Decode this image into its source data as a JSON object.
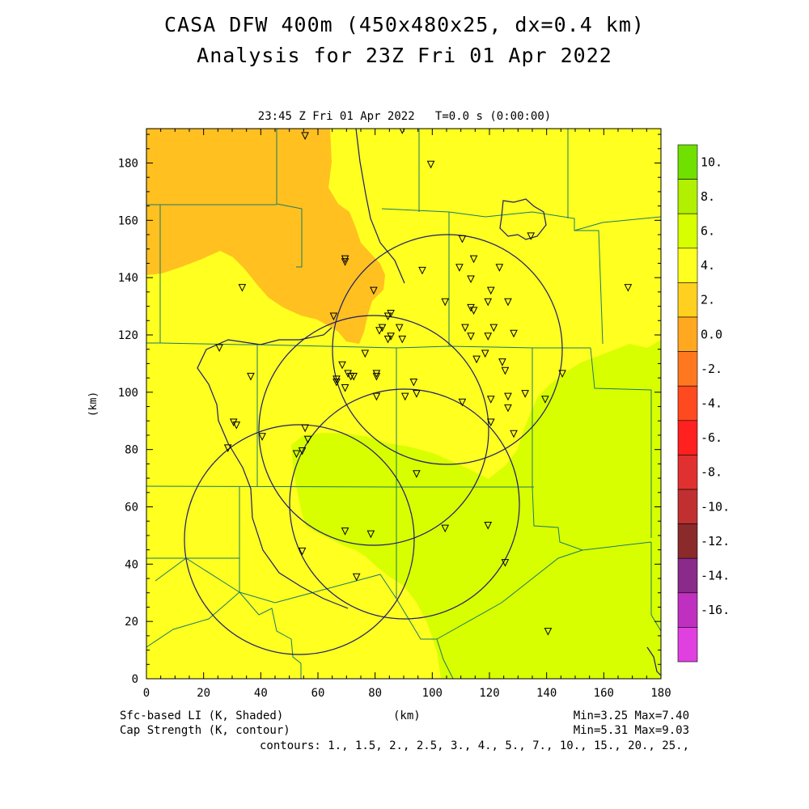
{
  "header": {
    "title_line1": "CASA DFW 400m (450x480x25, dx=0.4 km)",
    "title_line2": "Analysis for 23Z Fri 01 Apr 2022",
    "subtitle": "23:45 Z Fri 01 Apr 2022   T=0.0 s (0:00:00)"
  },
  "axes": {
    "x_label": "(km)",
    "y_label": "(km)",
    "x_ticks": [
      "0",
      "20",
      "40",
      "60",
      "80",
      "100",
      "120",
      "140",
      "160",
      "180"
    ],
    "y_ticks": [
      "0",
      "20",
      "40",
      "60",
      "80",
      "100",
      "120",
      "140",
      "160",
      "180"
    ],
    "x_range": [
      0,
      180
    ],
    "y_range": [
      0,
      192
    ]
  },
  "legend": {
    "labels": [
      "10.",
      "8.",
      "6.",
      "4.",
      "2.",
      "0.0",
      "-2.",
      "-4.",
      "-6.",
      "-8.",
      "-10.",
      "-12.",
      "-14.",
      "-16."
    ],
    "colors": [
      "#70e000",
      "#b0f000",
      "#d8ff00",
      "#ffff20",
      "#ffd020",
      "#ffa820",
      "#ff7820",
      "#ff4a20",
      "#ff2020",
      "#e03030",
      "#c03030",
      "#8a2a2a",
      "#8a2a8a",
      "#c030c0",
      "#e040e0"
    ]
  },
  "footer": {
    "shaded_label": "Sfc-based LI (K, Shaded)",
    "contour_label": "Cap Strength (K, contour)",
    "x_units": "(km)",
    "shaded_range": "Min=3.25 Max=7.40",
    "contour_range": "Min=5.31 Max=9.03",
    "contours": "contours: 1., 1.5, 2., 2.5, 3., 4., 5., 7., 10., 15., 20., 25.,"
  },
  "colors": {
    "yellow_fill": "#ffff20",
    "orange_fill": "#ffc020",
    "green_fill": "#d8ff00",
    "county_lines": "#1a7a6a",
    "contour_lines": "#1c1c6c"
  },
  "stations": [
    [
      55.5,
      189.5
    ],
    [
      89.5,
      191.5
    ],
    [
      99.5,
      179.5
    ],
    [
      69.5,
      146.5
    ],
    [
      69.5,
      145.5
    ],
    [
      33.5,
      136.5
    ],
    [
      110.5,
      153.5
    ],
    [
      134.5,
      154.5
    ],
    [
      96.5,
      142.5
    ],
    [
      109.5,
      143.5
    ],
    [
      114.5,
      146.5
    ],
    [
      123.5,
      143.5
    ],
    [
      113.5,
      139.5
    ],
    [
      120.5,
      135.5
    ],
    [
      79.5,
      135.5
    ],
    [
      119.5,
      131.5
    ],
    [
      126.5,
      131.5
    ],
    [
      104.5,
      131.5
    ],
    [
      113.5,
      129.5
    ],
    [
      114.5,
      128.5
    ],
    [
      85.5,
      127.5
    ],
    [
      84.5,
      126.5
    ],
    [
      65.5,
      126.5
    ],
    [
      168.5,
      136.5
    ],
    [
      82.5,
      122.5
    ],
    [
      88.5,
      122.5
    ],
    [
      81.5,
      121.5
    ],
    [
      111.5,
      122.5
    ],
    [
      121.5,
      122.5
    ],
    [
      119.5,
      119.5
    ],
    [
      113.5,
      119.5
    ],
    [
      128.5,
      120.5
    ],
    [
      85.5,
      119.5
    ],
    [
      84.5,
      118.5
    ],
    [
      89.5,
      118.5
    ],
    [
      25.5,
      115.5
    ],
    [
      76.5,
      113.5
    ],
    [
      118.5,
      113.5
    ],
    [
      115.5,
      111.5
    ],
    [
      124.5,
      110.5
    ],
    [
      36.5,
      105.5
    ],
    [
      68.5,
      109.5
    ],
    [
      70.5,
      106.5
    ],
    [
      71.5,
      105.5
    ],
    [
      72.5,
      105.5
    ],
    [
      80.5,
      106.5
    ],
    [
      80.5,
      105.5
    ],
    [
      66.5,
      104.5
    ],
    [
      66.5,
      103.5
    ],
    [
      125.5,
      107.5
    ],
    [
      93.5,
      103.5
    ],
    [
      145.5,
      106.5
    ],
    [
      69.5,
      101.5
    ],
    [
      94.5,
      99.5
    ],
    [
      132.5,
      99.5
    ],
    [
      126.5,
      98.5
    ],
    [
      80.5,
      98.5
    ],
    [
      90.5,
      98.5
    ],
    [
      120.5,
      97.5
    ],
    [
      110.5,
      96.5
    ],
    [
      139.5,
      97.5
    ],
    [
      126.5,
      94.5
    ],
    [
      120.5,
      89.5
    ],
    [
      30.5,
      89.5
    ],
    [
      31.5,
      88.5
    ],
    [
      55.5,
      87.5
    ],
    [
      128.5,
      85.5
    ],
    [
      40.5,
      84.5
    ],
    [
      56.5,
      83.5
    ],
    [
      28.5,
      80.5
    ],
    [
      54.5,
      79.5
    ],
    [
      52.5,
      78.5
    ],
    [
      94.5,
      71.5
    ],
    [
      119.5,
      53.5
    ],
    [
      104.5,
      52.5
    ],
    [
      69.5,
      51.5
    ],
    [
      78.5,
      50.5
    ],
    [
      54.5,
      44.5
    ],
    [
      125.5,
      40.5
    ],
    [
      73.5,
      35.5
    ],
    [
      140.5,
      16.5
    ]
  ]
}
